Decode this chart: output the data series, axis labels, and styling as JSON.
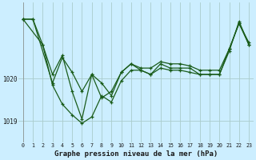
{
  "title": "Graphe pression niveau de la mer (hPa)",
  "background_color": "#cceeff",
  "plot_background": "#cceeff",
  "line_color": "#1a5c1a",
  "grid_color": "#aacccc",
  "xlim": [
    -0.5,
    23.5
  ],
  "ylim": [
    1018.5,
    1021.8
  ],
  "xticks": [
    0,
    1,
    2,
    3,
    4,
    5,
    6,
    7,
    8,
    9,
    10,
    11,
    12,
    13,
    14,
    15,
    16,
    17,
    18,
    19,
    20,
    21,
    22,
    23
  ],
  "ytick_positions": [
    1019,
    1020
  ],
  "series": [
    {
      "x": [
        0,
        1,
        2,
        3,
        4,
        5,
        6,
        7,
        8,
        9,
        10,
        11,
        12,
        13,
        14,
        15,
        16,
        17,
        18,
        19,
        20,
        21,
        22,
        23
      ],
      "y": [
        1021.4,
        1021.4,
        1020.8,
        1020.1,
        1020.55,
        1019.7,
        1019.05,
        1020.1,
        1019.55,
        1019.7,
        1020.15,
        1020.35,
        1020.25,
        1020.25,
        1020.4,
        1020.35,
        1020.35,
        1020.3,
        1020.2,
        1020.2,
        1020.2,
        1020.7,
        1021.3,
        1020.85
      ]
    },
    {
      "x": [
        0,
        1,
        3,
        4,
        5,
        6,
        7,
        8,
        9,
        10,
        11,
        12,
        13,
        14,
        15,
        16,
        17,
        18,
        19,
        20,
        21,
        22,
        23
      ],
      "y": [
        1021.4,
        1021.4,
        1019.9,
        1020.5,
        1020.15,
        1019.7,
        1020.1,
        1019.9,
        1019.6,
        1020.15,
        1020.35,
        1020.2,
        1020.1,
        1020.35,
        1020.25,
        1020.25,
        1020.25,
        1020.1,
        1020.1,
        1020.1,
        1020.7,
        1021.3,
        1020.8
      ]
    },
    {
      "x": [
        0,
        2,
        3,
        4,
        5,
        6,
        7,
        8,
        9,
        10,
        11,
        12,
        13,
        14,
        15,
        16,
        17,
        18,
        19,
        20,
        21,
        22,
        23
      ],
      "y": [
        1021.4,
        1020.8,
        1019.85,
        1019.4,
        1019.15,
        1018.95,
        1019.1,
        1019.6,
        1019.45,
        1019.95,
        1020.2,
        1020.2,
        1020.1,
        1020.25,
        1020.2,
        1020.2,
        1020.15,
        1020.1,
        1020.1,
        1020.1,
        1020.65,
        1021.35,
        1020.8
      ]
    }
  ]
}
